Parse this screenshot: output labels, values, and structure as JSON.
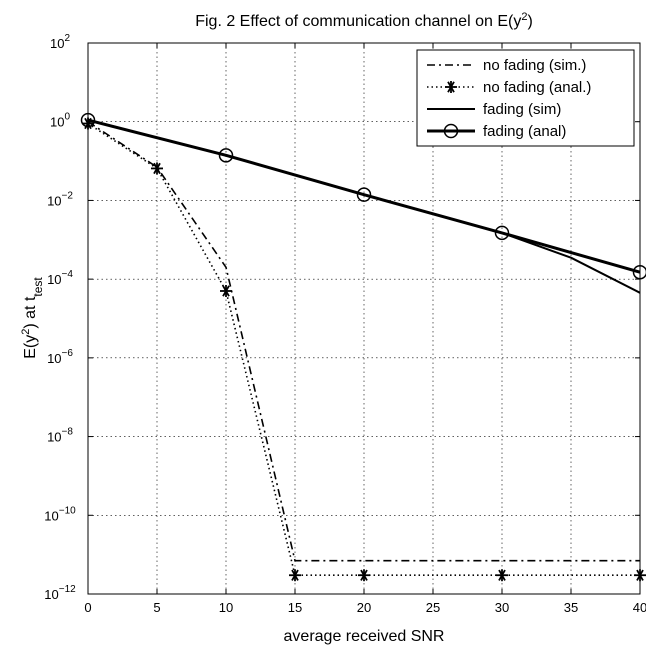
{
  "chart_data": {
    "type": "line",
    "title": "Fig. 2 Effect of communication channel on E(y²)",
    "xlabel": "average received SNR",
    "ylabel": "E(y²) at t_test",
    "xlim": [
      0,
      40
    ],
    "ylim_log10": [
      -12,
      2
    ],
    "y_scale": "log",
    "grid": true,
    "legend_position": "top-right",
    "x_ticks": [
      0,
      5,
      10,
      15,
      20,
      25,
      30,
      35,
      40
    ],
    "y_ticks_exponent": [
      2,
      0,
      -2,
      -4,
      -6,
      -8,
      -10,
      -12
    ],
    "series": [
      {
        "name": "no fading (sim.)",
        "style": "dash-dot",
        "x": [
          0,
          5,
          10,
          15,
          20,
          25,
          30,
          35,
          40
        ],
        "y": [
          1,
          0.07,
          0.0002,
          7e-12,
          7e-12,
          7e-12,
          7e-12,
          7e-12,
          7e-12
        ]
      },
      {
        "name": "no fading (anal.)",
        "style": "dotted-asterisk",
        "x": [
          0,
          5,
          10,
          15,
          20,
          30,
          40
        ],
        "y": [
          0.9,
          0.065,
          5e-05,
          3e-12,
          3e-12,
          3e-12,
          3e-12
        ]
      },
      {
        "name": "fading (sim)",
        "style": "solid",
        "x": [
          0,
          10,
          20,
          30,
          35,
          40
        ],
        "y": [
          1.1,
          0.14,
          0.014,
          0.0015,
          0.00035,
          4.5e-05
        ]
      },
      {
        "name": "fading (anal)",
        "style": "solid-circle",
        "x": [
          0,
          10,
          20,
          30,
          40
        ],
        "y": [
          1.1,
          0.14,
          0.014,
          0.0015,
          0.00015
        ]
      }
    ]
  }
}
